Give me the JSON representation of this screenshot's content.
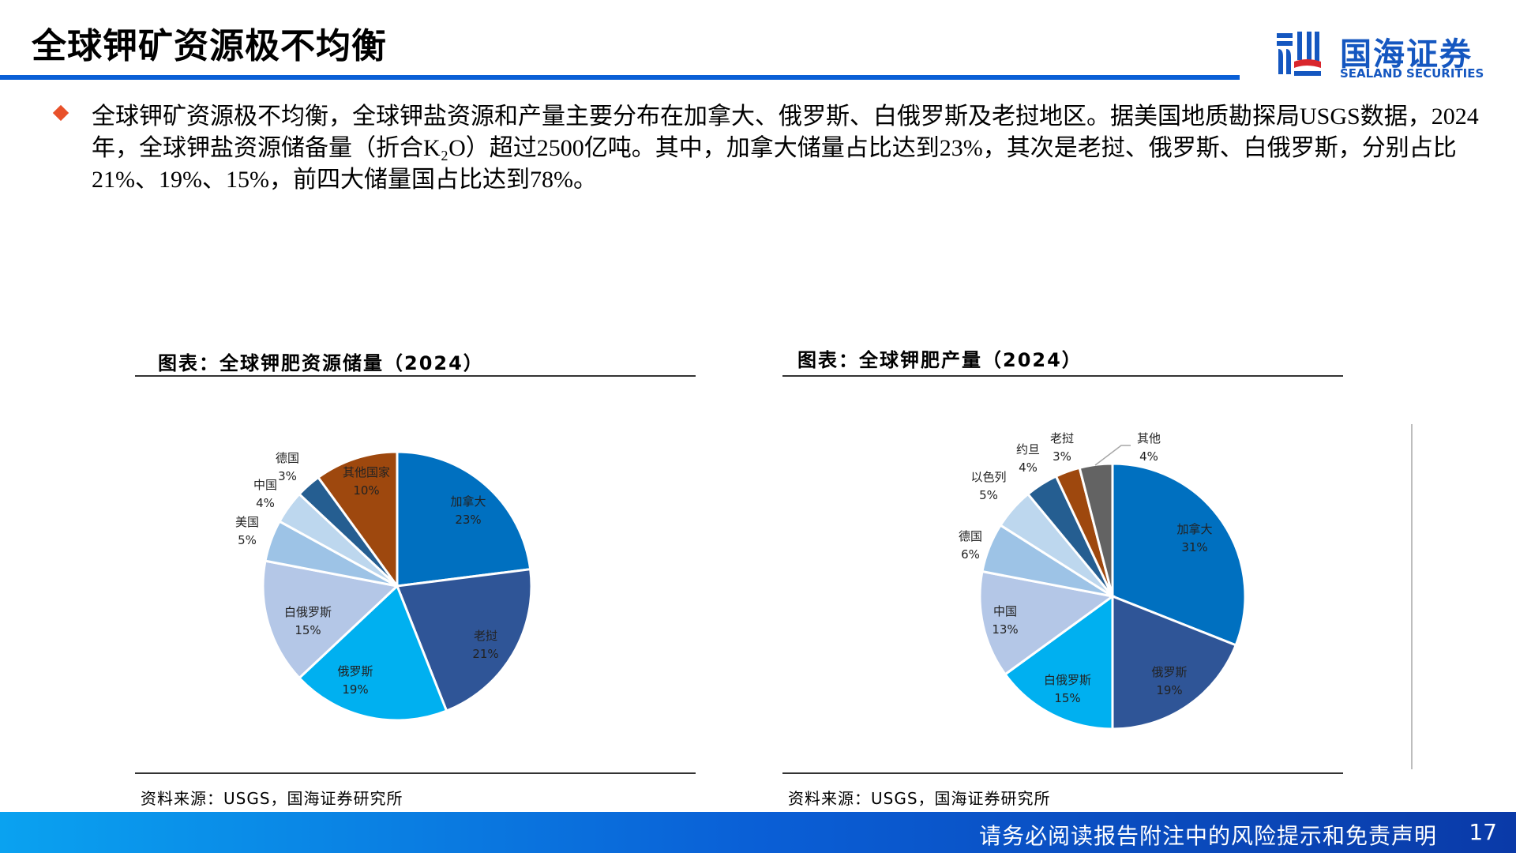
{
  "header": {
    "title": "全球钾矿资源极不均衡",
    "logo": {
      "cn": "国海证券",
      "en": "SEALAND SECURITIES",
      "icon": "sealand-logo-icon"
    }
  },
  "bullet": {
    "icon": "diamond-bullet-icon",
    "text": "全球钾矿资源极不均衡，全球钾盐资源和产量主要分布在加拿大、俄罗斯、白俄罗斯及老挝地区。据美国地质勘探局USGS数据，2024年，全球钾盐资源储备量（折合K₂O）超过2500亿吨。其中，加拿大储量占比达到23%，其次是老挝、俄罗斯、白俄罗斯，分别占比21%、19%、15%，前四大储量国占比达到78%。"
  },
  "charts": {
    "left": {
      "title": "图表：全球钾肥资源储量（2024）",
      "source": "资料来源：USGS，国海证券研究所"
    },
    "right": {
      "title": "图表：全球钾肥产量（2024）",
      "source": "资料来源：USGS，国海证券研究所"
    }
  },
  "chart_data": [
    {
      "type": "pie",
      "title": "图表：全球钾肥资源储量（2024）",
      "unit": "%",
      "categories": [
        "加拿大",
        "老挝",
        "俄罗斯",
        "白俄罗斯",
        "美国",
        "中国",
        "德国",
        "其他国家"
      ],
      "values": [
        23,
        21,
        19,
        15,
        5,
        4,
        3,
        10
      ],
      "colors": [
        "#0070c0",
        "#2f5597",
        "#00b0f0",
        "#b4c7e7",
        "#9dc3e6",
        "#bdd7ee",
        "#255e91",
        "#9e480e"
      ],
      "labels": [
        "加拿大\n23%",
        "老挝\n21%",
        "俄罗斯\n19%",
        "白俄罗斯\n15%",
        "美国\n5%",
        "中国\n4%",
        "德国\n3%",
        "其他国家\n10%"
      ],
      "source": "资料来源：USGS，国海证券研究所"
    },
    {
      "type": "pie",
      "title": "图表：全球钾肥产量（2024）",
      "unit": "%",
      "categories": [
        "加拿大",
        "俄罗斯",
        "白俄罗斯",
        "中国",
        "德国",
        "以色列",
        "约旦",
        "老挝",
        "其他"
      ],
      "values": [
        31,
        19,
        15,
        13,
        6,
        5,
        4,
        3,
        4
      ],
      "colors": [
        "#0070c0",
        "#2f5597",
        "#00b0f0",
        "#b4c7e7",
        "#9dc3e6",
        "#bdd7ee",
        "#255e91",
        "#9e480e",
        "#636363"
      ],
      "labels": [
        "加拿大\n31%",
        "俄罗斯\n19%",
        "白俄罗斯\n15%",
        "中国\n13%",
        "德国\n6%",
        "以色列\n5%",
        "约旦\n4%",
        "老挝\n3%",
        "其他\n4%"
      ],
      "source": "资料来源：USGS，国海证券研究所"
    }
  ],
  "pie_labels": {
    "left": [
      {
        "name": "加拿大",
        "pct": "23%"
      },
      {
        "name": "老挝",
        "pct": "21%"
      },
      {
        "name": "俄罗斯",
        "pct": "19%"
      },
      {
        "name": "白俄罗斯",
        "pct": "15%"
      },
      {
        "name": "美国",
        "pct": "5%"
      },
      {
        "name": "中国",
        "pct": "4%"
      },
      {
        "name": "德国",
        "pct": "3%"
      },
      {
        "name": "其他国家",
        "pct": "10%"
      }
    ],
    "right": [
      {
        "name": "加拿大",
        "pct": "31%"
      },
      {
        "name": "俄罗斯",
        "pct": "19%"
      },
      {
        "name": "白俄罗斯",
        "pct": "15%"
      },
      {
        "name": "中国",
        "pct": "13%"
      },
      {
        "name": "德国",
        "pct": "6%"
      },
      {
        "name": "以色列",
        "pct": "5%"
      },
      {
        "name": "约旦",
        "pct": "4%"
      },
      {
        "name": "老挝",
        "pct": "3%"
      },
      {
        "name": "其他",
        "pct": "4%"
      }
    ]
  },
  "footer": {
    "disclaimer": "请务必阅读报告附注中的风险提示和免责声明",
    "page_number": "17",
    "gradient": [
      "#0aa2f0",
      "#0a5fd6",
      "#0a3aa8"
    ]
  },
  "colors": {
    "accent_blue": "#0a5fd6",
    "bullet_orange": "#e8512a"
  }
}
